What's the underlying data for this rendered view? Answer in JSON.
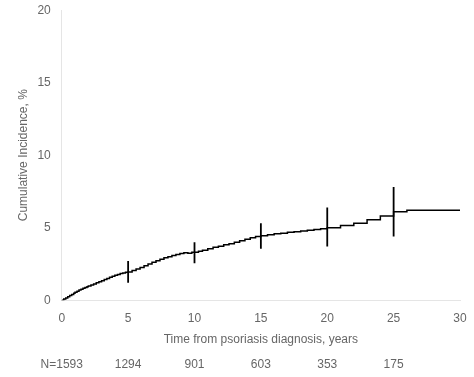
{
  "chart_data": {
    "type": "line",
    "line_style": "step",
    "xlabel": "Time from psoriasis diagnosis, years",
    "ylabel": "Cumulative Incidence, %",
    "xlim": [
      0,
      30
    ],
    "ylim": [
      0,
      20
    ],
    "xticks": [
      0,
      5,
      10,
      15,
      20,
      25,
      30
    ],
    "yticks": [
      0,
      5,
      10,
      15,
      20
    ],
    "grid": false,
    "color": "#000000",
    "x": [
      0,
      0.15,
      0.3,
      0.45,
      0.6,
      0.75,
      0.9,
      1.0,
      1.15,
      1.3,
      1.45,
      1.6,
      1.75,
      1.9,
      2.0,
      2.2,
      2.4,
      2.6,
      2.8,
      3.0,
      3.2,
      3.4,
      3.6,
      3.8,
      4.0,
      4.2,
      4.4,
      4.6,
      4.8,
      5.0,
      5.3,
      5.6,
      5.9,
      6.2,
      6.5,
      6.8,
      7.1,
      7.4,
      7.7,
      8.0,
      8.3,
      8.6,
      8.9,
      9.2,
      9.5,
      9.8,
      10.0,
      10.3,
      10.6,
      11.0,
      11.4,
      11.8,
      12.2,
      12.6,
      13.0,
      13.4,
      13.8,
      14.2,
      14.6,
      15.0,
      15.5,
      16.0,
      16.5,
      17.0,
      17.5,
      18.0,
      18.5,
      19.0,
      19.5,
      20.0,
      21.0,
      22.0,
      23.0,
      24.0,
      25.0,
      26.0,
      27.0,
      28.0,
      29.0,
      30.0
    ],
    "values": [
      0,
      0.08,
      0.16,
      0.24,
      0.32,
      0.4,
      0.48,
      0.55,
      0.62,
      0.7,
      0.76,
      0.82,
      0.88,
      0.93,
      0.98,
      1.05,
      1.12,
      1.2,
      1.28,
      1.35,
      1.42,
      1.5,
      1.58,
      1.65,
      1.72,
      1.78,
      1.84,
      1.88,
      1.92,
      1.95,
      2.05,
      2.15,
      2.25,
      2.38,
      2.5,
      2.62,
      2.72,
      2.82,
      2.92,
      3.0,
      3.08,
      3.16,
      3.22,
      3.28,
      3.24,
      3.3,
      3.3,
      3.38,
      3.45,
      3.55,
      3.65,
      3.72,
      3.82,
      3.9,
      4.0,
      4.1,
      4.2,
      4.3,
      4.4,
      4.45,
      4.52,
      4.58,
      4.62,
      4.68,
      4.72,
      4.78,
      4.82,
      4.88,
      4.92,
      5.0,
      5.15,
      5.3,
      5.55,
      5.8,
      6.1,
      6.2,
      6.2,
      6.2,
      6.2,
      6.2
    ],
    "ci": {
      "color": "#000000",
      "points": [
        {
          "x": 5,
          "lo": 1.2,
          "hi": 2.7
        },
        {
          "x": 10,
          "lo": 2.55,
          "hi": 4.0
        },
        {
          "x": 15,
          "lo": 3.55,
          "hi": 5.3
        },
        {
          "x": 20,
          "lo": 3.7,
          "hi": 6.4
        },
        {
          "x": 25,
          "lo": 4.4,
          "hi": 7.8
        }
      ]
    },
    "at_risk": {
      "label": "N=1593",
      "label_x": 0,
      "times": [
        5,
        10,
        15,
        20,
        25
      ],
      "values": [
        1294,
        901,
        603,
        353,
        175
      ]
    }
  }
}
